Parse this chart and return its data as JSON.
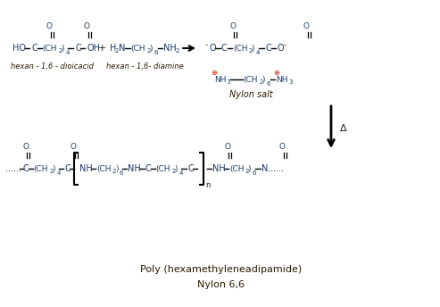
{
  "bg_color": "#ffffff",
  "fig_width": 4.93,
  "fig_height": 3.44,
  "dpi": 100,
  "title1": "Poly (hexamethyleneadipamide)",
  "title2": "Nylon 6,6",
  "label1": "hexan - 1,6 - dioicacid",
  "label2": "hexan - 1,6- diamine",
  "label3": "Nylon salt",
  "text_color": "#2a1a00",
  "blue_color": "#1a3a6a",
  "red_color": "#cc2200"
}
